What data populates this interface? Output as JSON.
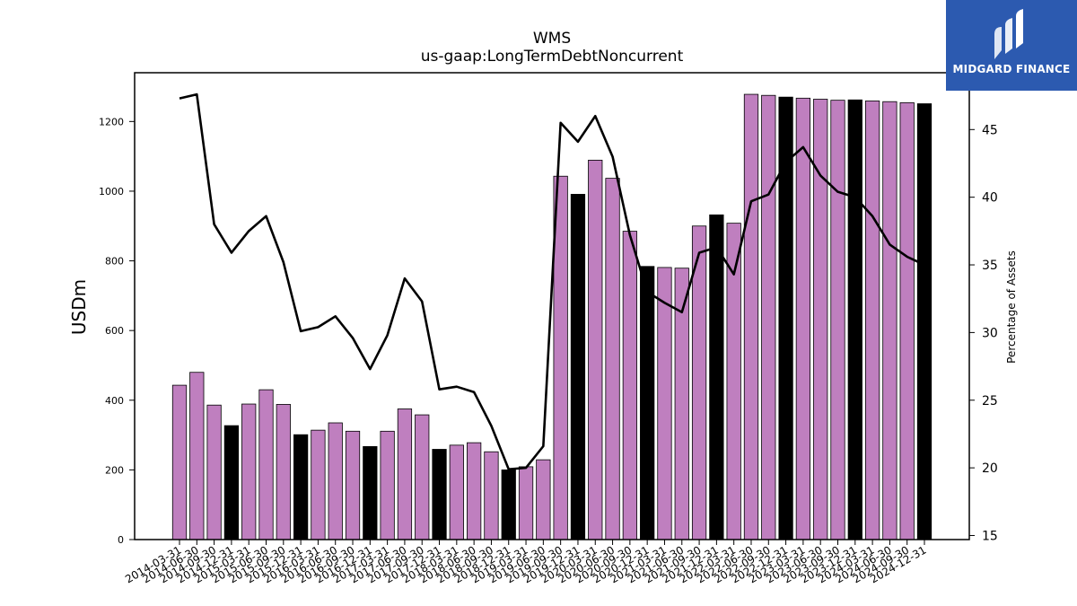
{
  "logo": {
    "text": "MIDGARD FINANCE",
    "icon": "midgard-logo-icon",
    "background": "#2c5ab0"
  },
  "chart_data": {
    "type": "bar",
    "title": "WMS",
    "subtitle": "us-gaap:LongTermDebtNoncurrent",
    "ylabel": "USDm",
    "y2label": "Percentage of Assets",
    "ylim": [
      0,
      1340
    ],
    "y2lim": [
      14.7,
      49.2
    ],
    "yticks": [
      0,
      200,
      400,
      600,
      800,
      1000,
      1200
    ],
    "y2ticks": [
      15,
      20,
      25,
      30,
      35,
      40,
      45
    ],
    "grid": false,
    "colors": {
      "bar": "#bf7fbf",
      "bar_q4": "#000000",
      "line": "#000000"
    },
    "categories": [
      "2014-03-31",
      "2014-06-30",
      "2014-09-30",
      "2014-12-31",
      "2015-03-31",
      "2015-06-30",
      "2015-09-30",
      "2015-12-31",
      "2016-03-31",
      "2016-06-30",
      "2016-09-30",
      "2016-12-31",
      "2017-03-31",
      "2017-06-30",
      "2017-09-30",
      "2017-12-31",
      "2018-03-31",
      "2018-06-30",
      "2018-09-30",
      "2018-12-31",
      "2019-03-31",
      "2019-06-30",
      "2019-09-30",
      "2019-12-31",
      "2020-03-31",
      "2020-06-30",
      "2020-09-30",
      "2020-12-31",
      "2021-03-31",
      "2021-06-30",
      "2021-09-30",
      "2021-12-31",
      "2022-03-31",
      "2022-06-30",
      "2022-09-30",
      "2022-12-31",
      "2023-03-31",
      "2023-06-30",
      "2023-09-30",
      "2023-12-31",
      "2024-03-31",
      "2024-06-30",
      "2024-09-30",
      "2024-12-31"
    ],
    "series": [
      {
        "name": "",
        "type": "bar",
        "axis": "left",
        "values": [
          443,
          480,
          386,
          327,
          389,
          430,
          388,
          301,
          314,
          335,
          311,
          267,
          311,
          375,
          358,
          259,
          271,
          278,
          252,
          200,
          209,
          229,
          1043,
          991,
          1089,
          1037,
          885,
          784,
          781,
          779,
          900,
          932,
          908,
          1278,
          1275,
          1270,
          1267,
          1264,
          1261,
          1262,
          1259,
          1257,
          1254,
          1251
        ],
        "highlight": [
          false,
          false,
          false,
          true,
          false,
          false,
          false,
          true,
          false,
          false,
          false,
          true,
          false,
          false,
          false,
          true,
          false,
          false,
          false,
          true,
          false,
          false,
          false,
          true,
          false,
          false,
          false,
          true,
          false,
          false,
          false,
          true,
          false,
          false,
          false,
          true,
          false,
          false,
          false,
          true,
          false,
          false,
          false,
          true
        ]
      },
      {
        "name": "",
        "type": "line",
        "axis": "right",
        "values": [
          47.3,
          47.6,
          38.0,
          35.9,
          37.5,
          38.6,
          35.2,
          30.1,
          30.4,
          31.2,
          29.6,
          27.3,
          29.8,
          34.0,
          32.3,
          25.8,
          26.0,
          25.6,
          23.1,
          19.9,
          20.0,
          21.6,
          45.5,
          44.1,
          46.0,
          43.0,
          37.2,
          33.0,
          32.2,
          31.5,
          35.9,
          36.3,
          34.3,
          39.7,
          40.2,
          42.6,
          43.7,
          41.6,
          40.4,
          40.0,
          38.6,
          36.5,
          35.6,
          35.0
        ]
      }
    ]
  }
}
